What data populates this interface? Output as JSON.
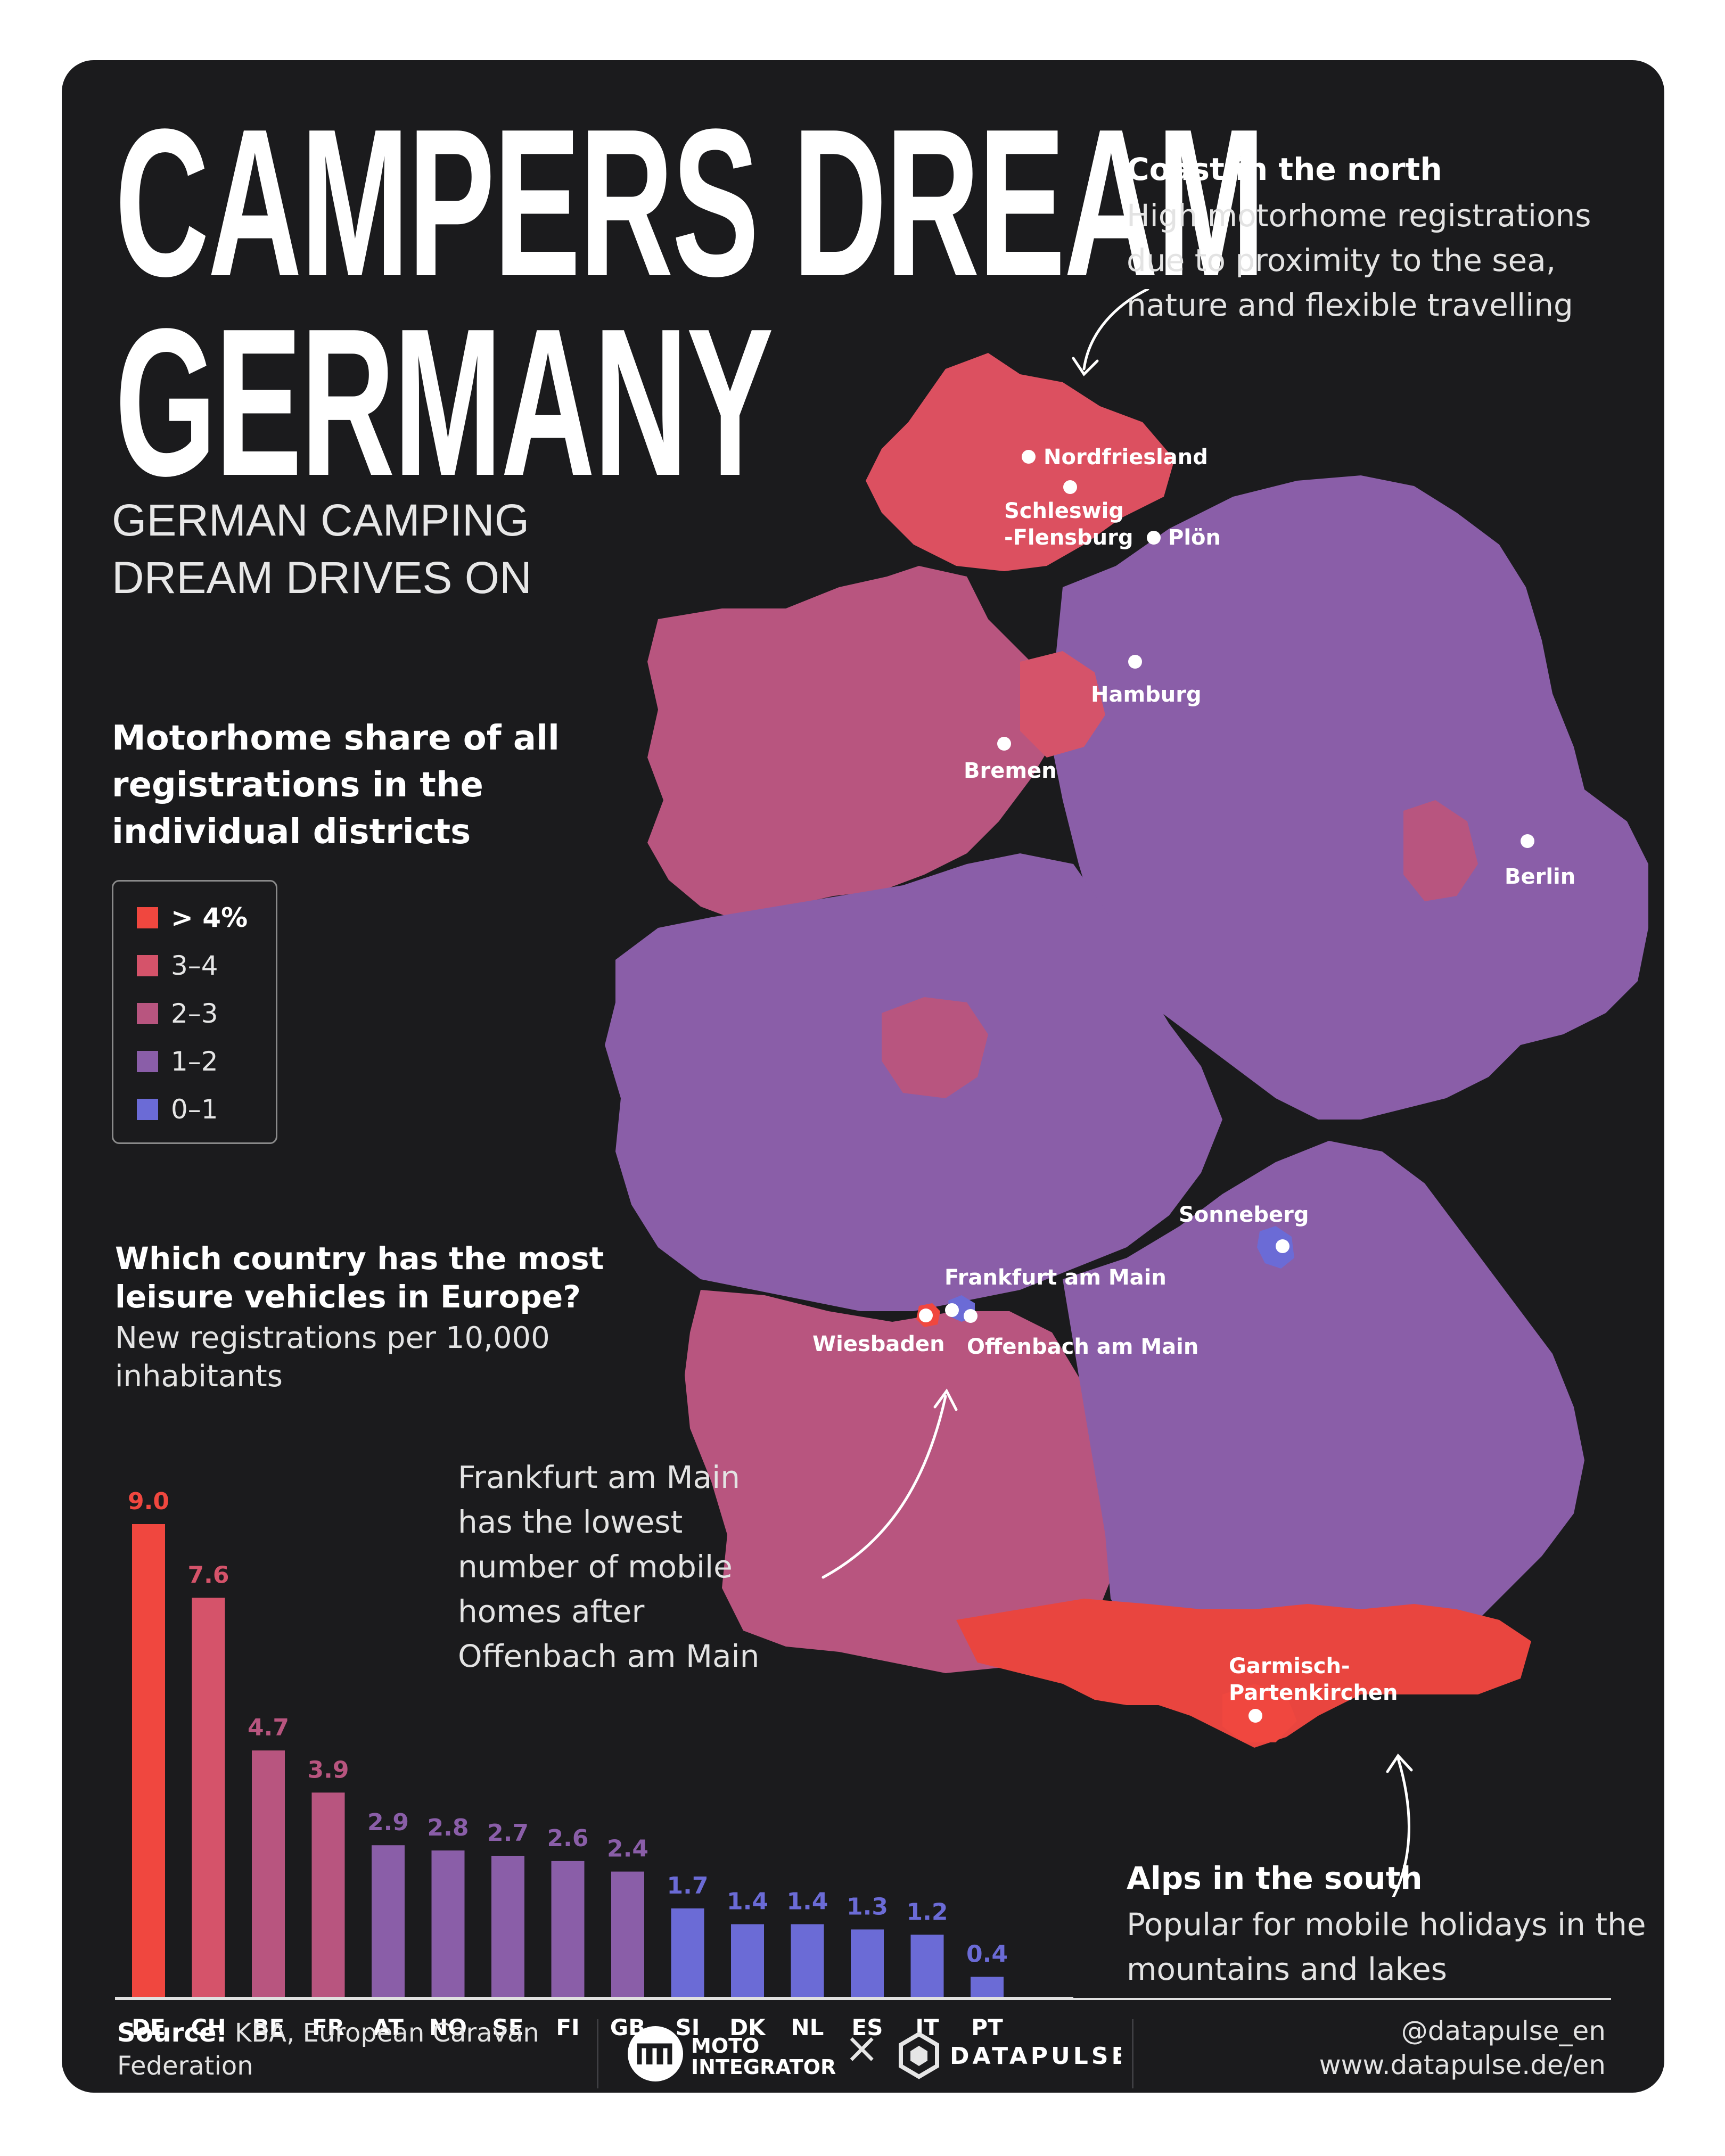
{
  "title_lines": [
    "CAMPERS DREAM",
    "GERMANY"
  ],
  "subtitle_lines": [
    "GERMAN CAMPING",
    "DREAM DRIVES ON"
  ],
  "map_heading": "Motorhome share of all registrations in the individual districts",
  "legend": [
    {
      "label": "> 4%",
      "color": "#f0473f",
      "bold": true
    },
    {
      "label": "3–4",
      "color": "#d5536a"
    },
    {
      "label": "2–3",
      "color": "#b8557f"
    },
    {
      "label": "1–2",
      "color": "#8a5ea8"
    },
    {
      "label": "0–1",
      "color": "#6b6bd6"
    }
  ],
  "chart_heading": "Which country has the most leisure vehicles in Europe?",
  "chart_subheading": "New registrations per 10,000 inhabitants",
  "chart_data": {
    "type": "bar",
    "title": "Which country has the most leisure vehicles in Europe?",
    "subtitle": "New registrations per 10,000 inhabitants",
    "categories": [
      "DE",
      "CH",
      "BE",
      "FR",
      "AT",
      "NO",
      "SE",
      "FI",
      "GB",
      "SI",
      "DK",
      "NL",
      "ES",
      "IT",
      "PT"
    ],
    "values": [
      9.0,
      7.6,
      4.7,
      3.9,
      2.9,
      2.8,
      2.7,
      2.6,
      2.4,
      1.7,
      1.4,
      1.4,
      1.3,
      1.2,
      0.4
    ],
    "value_labels": [
      "9.0",
      "7.6",
      "4.7",
      "3.9",
      "2.9",
      "2.8",
      "2.7",
      "2.6",
      "2.4",
      "1.7",
      "1.4",
      "1.4",
      "1.3",
      "1.2",
      "0.4"
    ],
    "colors": [
      "#f0473f",
      "#d5536a",
      "#b8557f",
      "#b8557f",
      "#8a5ea8",
      "#8a5ea8",
      "#8a5ea8",
      "#8a5ea8",
      "#8a5ea8",
      "#6b6bd6",
      "#6b6bd6",
      "#6b6bd6",
      "#6b6bd6",
      "#6b6bd6",
      "#6b6bd6"
    ],
    "xlabel": "",
    "ylabel": "",
    "ylim": [
      0,
      9.0
    ],
    "grid": false
  },
  "callouts": {
    "coast": {
      "title": "Coast in the north",
      "text": "High motorhome registrations due to proximity to the sea, nature and flexible travelling"
    },
    "alps": {
      "title": "Alps in the south",
      "text": "Popular for mobile holidays in the mountains and lakes"
    },
    "frankfurt": {
      "text": "Frankfurt am Main has the lowest number of mobile homes after Offenbach am Main"
    }
  },
  "cities": {
    "nordfriesland": "Nordfriesland",
    "schleswig_1": "Schleswig",
    "schleswig_2": "-Flensburg",
    "ploen": "Plön",
    "hamburg": "Hamburg",
    "bremen": "Bremen",
    "berlin": "Berlin",
    "sonneberg": "Sonneberg",
    "frankfurt": "Frankfurt am Main",
    "wiesbaden": "Wiesbaden",
    "offenbach": "Offenbach am Main",
    "garmisch_1": "Garmisch-",
    "garmisch_2": "Partenkirchen"
  },
  "map_colors": {
    "over4": "#f0473f",
    "r3_4": "#d5536a",
    "r2_3": "#b8557f",
    "r1_2": "#8a5ea8",
    "r0_1": "#6b6bd6"
  },
  "footer": {
    "source_label": "Source:",
    "source_text": "KBA, European Caravan Federation",
    "moto_line1": "MOTO",
    "moto_line2": "INTEGRATOR",
    "times": "×",
    "datapulse": "DATAPULSE",
    "handle": "@datapulse_en",
    "url": "www.datapulse.de/en"
  }
}
